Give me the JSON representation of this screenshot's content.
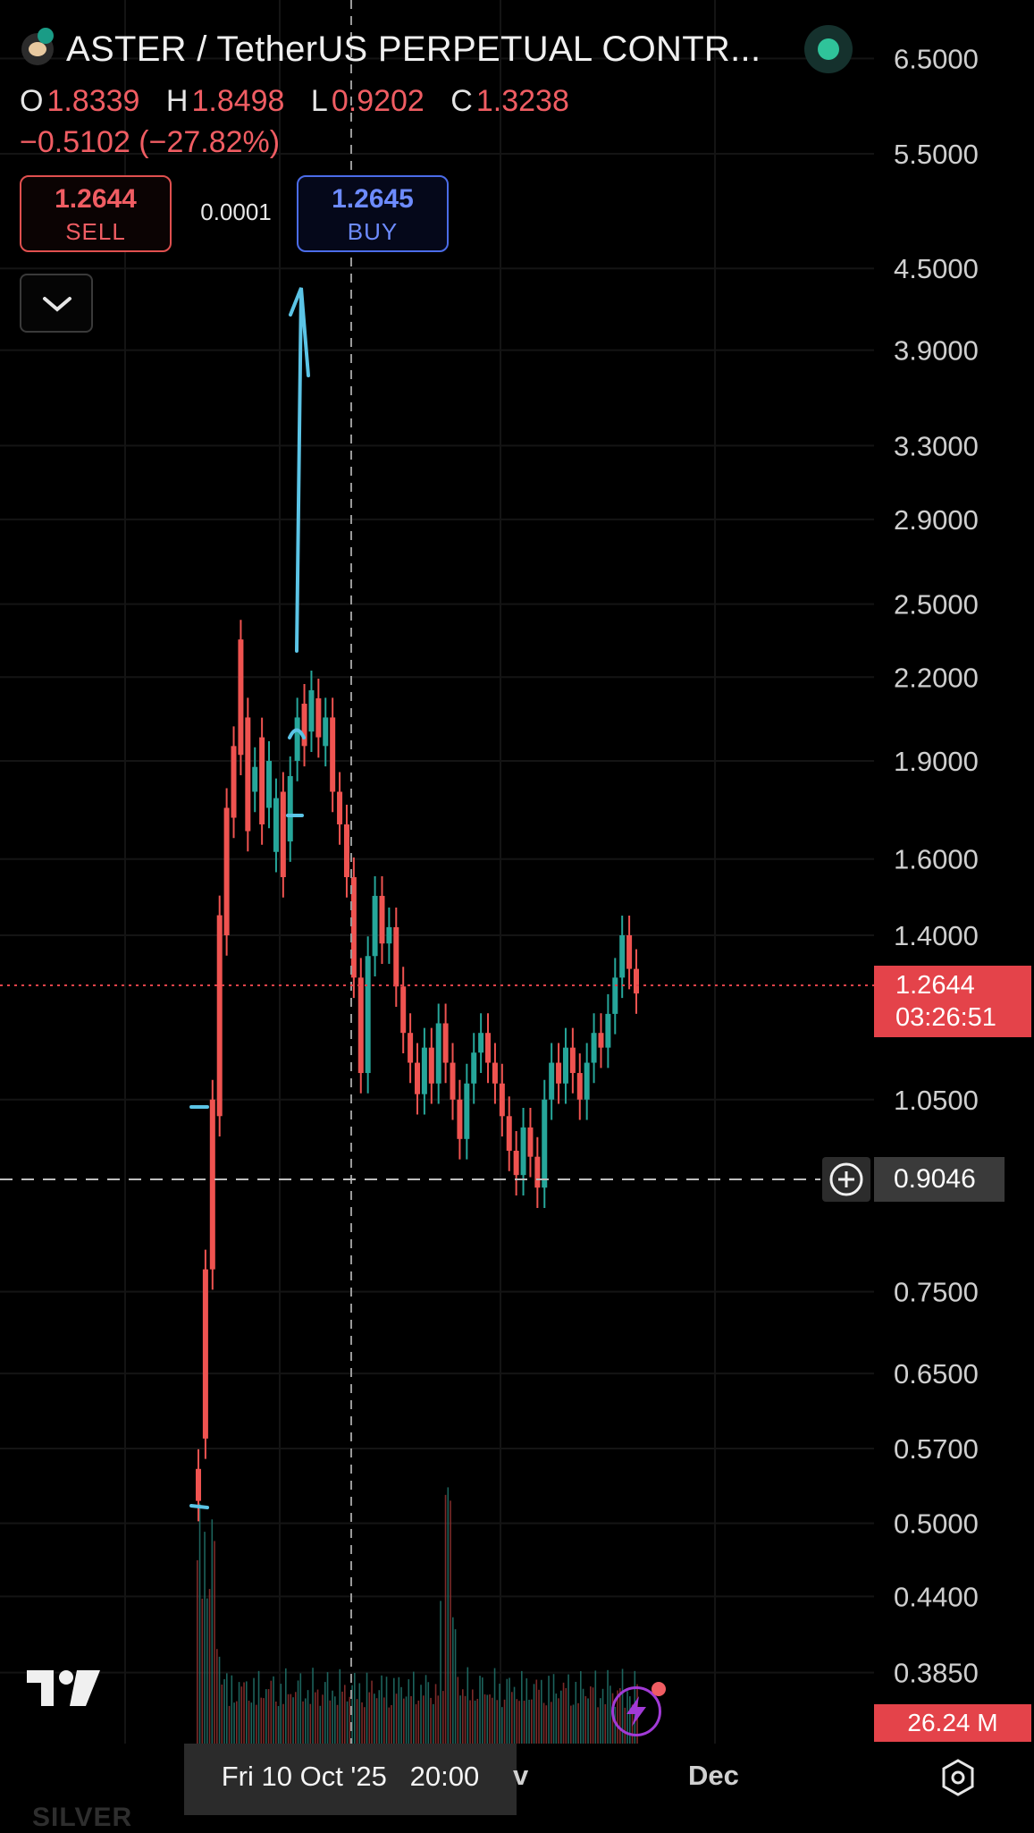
{
  "header": {
    "symbol_title": "ASTER / TetherUS PERPETUAL CONTR...",
    "ohlc": {
      "o_label": "O",
      "o_value": "1.8339",
      "h_label": "H",
      "h_value": "1.8498",
      "l_label": "L",
      "l_value": "0.9202",
      "c_label": "C",
      "c_value": "1.3238"
    },
    "change": "−0.5102 (−27.82%)"
  },
  "trade": {
    "sell_price": "1.2644",
    "sell_label": "SELL",
    "spread": "0.0001",
    "buy_price": "1.2645",
    "buy_label": "BUY"
  },
  "price_badge": {
    "price": "1.2644",
    "countdown": "03:26:51"
  },
  "crosshair": {
    "price": "0.9046",
    "time": "Fri 10 Oct '25   20:00"
  },
  "volume_badge": "26.24 M",
  "x_axis": {
    "partial_label": "v",
    "dec_label": "Dec"
  },
  "watermark": "SILVER",
  "colors": {
    "up": "#26a69a",
    "down": "#ef5350",
    "annotation": "#5bc4e6",
    "accent_red": "#e4434a",
    "buy_blue": "#4b6ce8"
  },
  "icons": [
    "exchange-logo-icon",
    "live-status-icon",
    "chevron-down-icon",
    "plus-circle-icon",
    "bolt-icon",
    "settings-icon",
    "tradingview-logo-icon"
  ],
  "chart_data": {
    "type": "candlestick",
    "y_scale": "log",
    "ylim": [
      0.34,
      7.2
    ],
    "y_ticks": [
      "6.5000",
      "5.5000",
      "4.5000",
      "3.9000",
      "3.3000",
      "2.9000",
      "2.5000",
      "2.2000",
      "1.9000",
      "1.6000",
      "1.4000",
      "1.0500",
      "0.7500",
      "0.6500",
      "0.5700",
      "0.5000",
      "0.4400",
      "0.3850"
    ],
    "last_price": 1.2644,
    "crosshair_price": 0.9046,
    "series": [
      {
        "name": "price",
        "points": [
          [
            0.55,
            0.52
          ],
          [
            0.78,
            0.58
          ],
          [
            1.05,
            0.78
          ],
          [
            1.45,
            1.02
          ],
          [
            1.75,
            1.4
          ],
          [
            1.95,
            1.72
          ],
          [
            2.35,
            1.92
          ],
          [
            2.05,
            1.68
          ],
          [
            1.8,
            1.88
          ],
          [
            1.98,
            1.7
          ],
          [
            1.75,
            1.9
          ],
          [
            1.62,
            1.78
          ],
          [
            1.8,
            1.55
          ],
          [
            1.65,
            1.85
          ],
          [
            1.9,
            2.05
          ],
          [
            2.1,
            1.95
          ],
          [
            2.0,
            2.15
          ],
          [
            2.12,
            1.98
          ],
          [
            1.95,
            2.05
          ],
          [
            2.05,
            1.8
          ],
          [
            1.8,
            1.7
          ],
          [
            1.7,
            1.55
          ],
          [
            1.55,
            1.3
          ],
          [
            1.3,
            1.1
          ],
          [
            1.1,
            1.35
          ],
          [
            1.35,
            1.5
          ],
          [
            1.5,
            1.38
          ],
          [
            1.38,
            1.42
          ],
          [
            1.42,
            1.28
          ],
          [
            1.28,
            1.18
          ],
          [
            1.18,
            1.12
          ],
          [
            1.12,
            1.06
          ],
          [
            1.06,
            1.15
          ],
          [
            1.15,
            1.08
          ],
          [
            1.08,
            1.2
          ],
          [
            1.2,
            1.12
          ],
          [
            1.12,
            1.05
          ],
          [
            1.05,
            0.98
          ],
          [
            0.98,
            1.08
          ],
          [
            1.08,
            1.14
          ],
          [
            1.14,
            1.18
          ],
          [
            1.18,
            1.12
          ],
          [
            1.12,
            1.08
          ],
          [
            1.08,
            1.02
          ],
          [
            1.02,
            0.96
          ],
          [
            0.96,
            0.92
          ],
          [
            0.92,
            1.0
          ],
          [
            1.0,
            0.95
          ],
          [
            0.95,
            0.9
          ],
          [
            0.9,
            1.05
          ],
          [
            1.05,
            1.12
          ],
          [
            1.12,
            1.08
          ],
          [
            1.08,
            1.15
          ],
          [
            1.15,
            1.1
          ],
          [
            1.1,
            1.05
          ],
          [
            1.05,
            1.12
          ],
          [
            1.12,
            1.18
          ],
          [
            1.18,
            1.15
          ],
          [
            1.15,
            1.22
          ],
          [
            1.22,
            1.3
          ],
          [
            1.3,
            1.4
          ],
          [
            1.4,
            1.32
          ],
          [
            1.32,
            1.2644
          ]
        ]
      }
    ]
  }
}
